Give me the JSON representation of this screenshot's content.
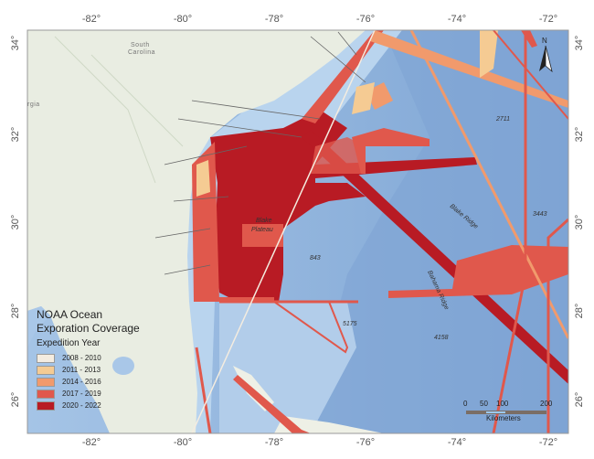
{
  "title_line1": "NOAA Ocean",
  "title_line2": "Exporation Coverage",
  "legend": {
    "heading": "Expedition Year",
    "items": [
      {
        "label": "2008 - 2010",
        "color": "#f4ece0"
      },
      {
        "label": "2011 - 2013",
        "color": "#f5cb93"
      },
      {
        "label": "2014 - 2016",
        "color": "#f19a6c"
      },
      {
        "label": "2017 - 2019",
        "color": "#e0584c"
      },
      {
        "label": "2020 - 2022",
        "color": "#b81b24"
      }
    ]
  },
  "longitude_ticks": [
    "-82°",
    "-80°",
    "-78°",
    "-76°",
    "-74°",
    "-72°"
  ],
  "latitude_ticks": [
    "34°",
    "32°",
    "30°",
    "28°",
    "26°"
  ],
  "place_labels": {
    "south_carolina_1": "South",
    "south_carolina_2": "Carolina",
    "georgia": "rgia",
    "blake_plateau_1": "Blake",
    "blake_plateau_2": "Plateau",
    "blake_ridge": "Blake Ridge",
    "bahama_ridge": "Bahama Ridge",
    "depth_1": "2711",
    "depth_2": "3443",
    "depth_3": "843",
    "depth_4": "5175",
    "depth_5": "4158"
  },
  "north_arrow": "N",
  "scale_bar": {
    "ticks": [
      "0",
      "50",
      "100",
      "200"
    ],
    "unit": "Kilometers"
  },
  "colors": {
    "land": "#e9ede2",
    "shelf": "#b4d0ea",
    "ocean": "#86abd8"
  }
}
